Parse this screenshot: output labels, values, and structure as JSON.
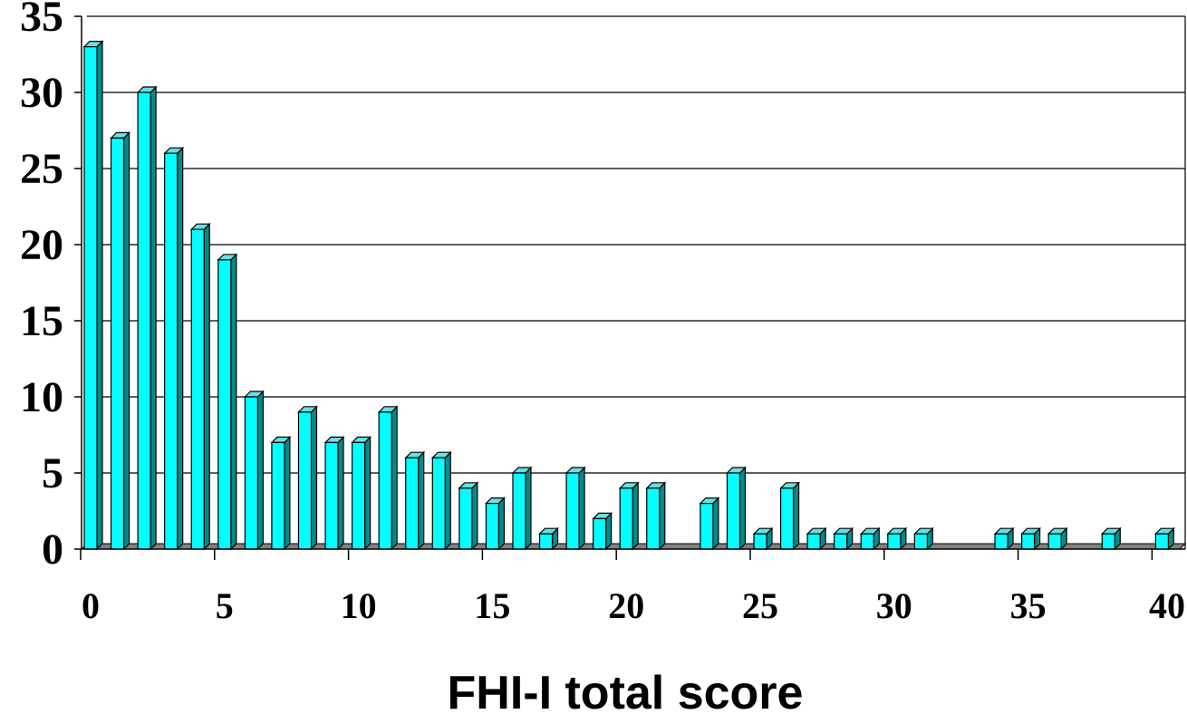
{
  "chart_data": {
    "type": "bar",
    "title": "",
    "xlabel": "FHI-I total score",
    "ylabel": "",
    "ylim": [
      0,
      35
    ],
    "y_ticks": [
      0,
      5,
      10,
      15,
      20,
      25,
      30,
      35
    ],
    "x_ticks": [
      0,
      5,
      10,
      15,
      20,
      25,
      30,
      35,
      40
    ],
    "grid": "horizontal",
    "legend": "none",
    "categories": [
      0,
      1,
      2,
      3,
      4,
      5,
      6,
      7,
      8,
      9,
      10,
      11,
      12,
      13,
      14,
      15,
      16,
      17,
      18,
      19,
      20,
      21,
      22,
      23,
      24,
      25,
      26,
      27,
      28,
      29,
      30,
      31,
      32,
      33,
      34,
      35,
      36,
      37,
      38,
      39,
      40
    ],
    "values": [
      33,
      27,
      30,
      26,
      21,
      19,
      10,
      7,
      9,
      7,
      7,
      9,
      6,
      6,
      4,
      3,
      5,
      1,
      5,
      2,
      4,
      4,
      0,
      3,
      5,
      1,
      4,
      1,
      1,
      1,
      1,
      1,
      0,
      0,
      1,
      1,
      1,
      0,
      1,
      0,
      1
    ],
    "colors": {
      "bar_front": "#00FFFF",
      "bar_side": "#008B8B",
      "bar_top": "#66E0E0",
      "floor": "#808080",
      "gridline": "#000000",
      "background": "#FFFFFF"
    }
  }
}
